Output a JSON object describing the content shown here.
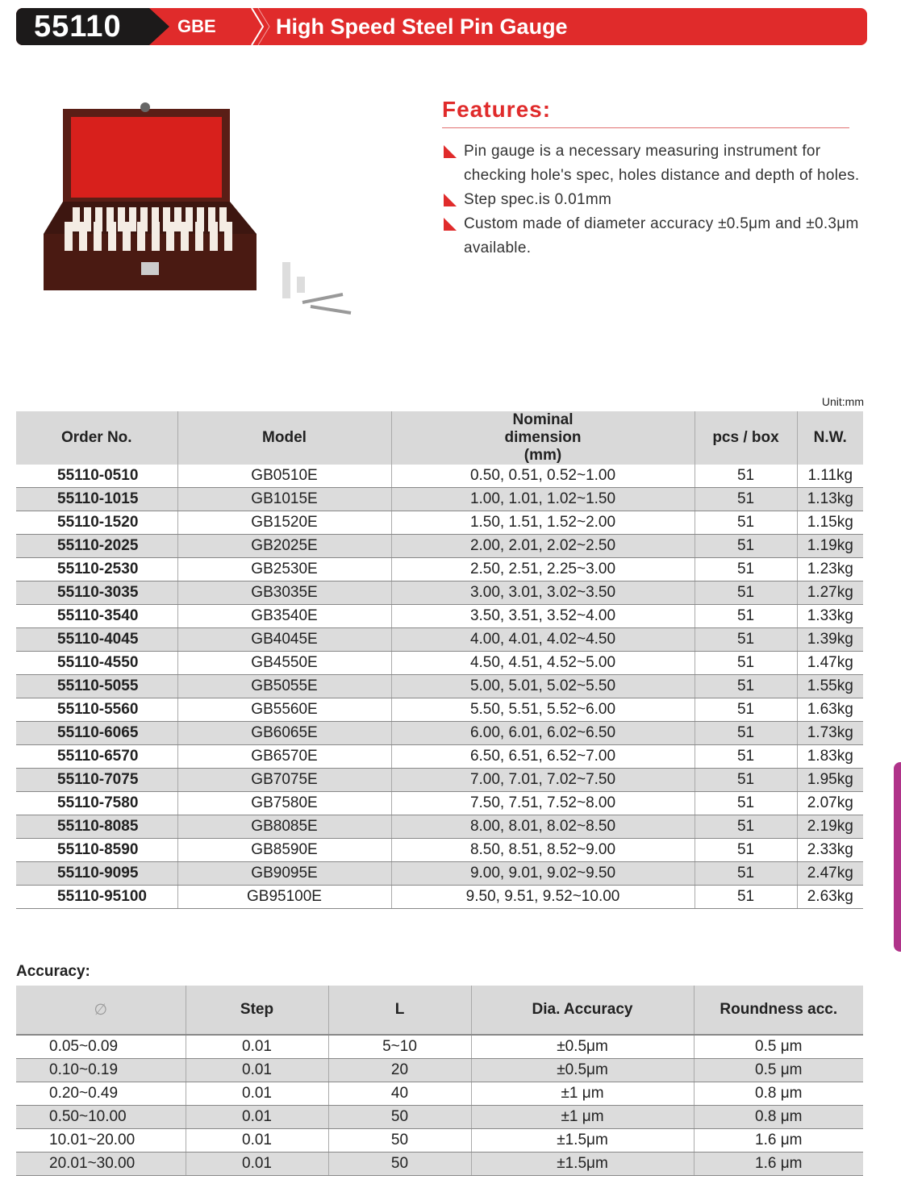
{
  "banner": {
    "number": "55110",
    "brand": "GBE",
    "title": "High Speed Steel Pin Gauge"
  },
  "features": {
    "title": "Features:",
    "items": [
      "Pin gauge is a necessary measuring instrument for checking hole's spec, holes distance and depth of holes.",
      "Step spec.is 0.01mm",
      "Custom made of diameter accuracy ±0.5μm and ±0.3μm available."
    ]
  },
  "main_table": {
    "unit": "Unit:mm",
    "headers": [
      "Order No.",
      "Model",
      "Nominal dimension (mm)",
      "pcs / box",
      "N.W."
    ],
    "rows": [
      [
        "55110-0510",
        "GB0510E",
        "0.50, 0.51, 0.52~1.00",
        "51",
        "1.11kg"
      ],
      [
        "55110-1015",
        "GB1015E",
        "1.00, 1.01, 1.02~1.50",
        "51",
        "1.13kg"
      ],
      [
        "55110-1520",
        "GB1520E",
        "1.50, 1.51, 1.52~2.00",
        "51",
        "1.15kg"
      ],
      [
        "55110-2025",
        "GB2025E",
        "2.00, 2.01, 2.02~2.50",
        "51",
        "1.19kg"
      ],
      [
        "55110-2530",
        "GB2530E",
        "2.50, 2.51, 2.25~3.00",
        "51",
        "1.23kg"
      ],
      [
        "55110-3035",
        "GB3035E",
        "3.00, 3.01, 3.02~3.50",
        "51",
        "1.27kg"
      ],
      [
        "55110-3540",
        "GB3540E",
        "3.50, 3.51, 3.52~4.00",
        "51",
        "1.33kg"
      ],
      [
        "55110-4045",
        "GB4045E",
        "4.00, 4.01, 4.02~4.50",
        "51",
        "1.39kg"
      ],
      [
        "55110-4550",
        "GB4550E",
        "4.50, 4.51, 4.52~5.00",
        "51",
        "1.47kg"
      ],
      [
        "55110-5055",
        "GB5055E",
        "5.00, 5.01, 5.02~5.50",
        "51",
        "1.55kg"
      ],
      [
        "55110-5560",
        "GB5560E",
        "5.50, 5.51, 5.52~6.00",
        "51",
        "1.63kg"
      ],
      [
        "55110-6065",
        "GB6065E",
        "6.00, 6.01, 6.02~6.50",
        "51",
        "1.73kg"
      ],
      [
        "55110-6570",
        "GB6570E",
        "6.50, 6.51, 6.52~7.00",
        "51",
        "1.83kg"
      ],
      [
        "55110-7075",
        "GB7075E",
        "7.00, 7.01, 7.02~7.50",
        "51",
        "1.95kg"
      ],
      [
        "55110-7580",
        "GB7580E",
        "7.50, 7.51, 7.52~8.00",
        "51",
        "2.07kg"
      ],
      [
        "55110-8085",
        "GB8085E",
        "8.00, 8.01, 8.02~8.50",
        "51",
        "2.19kg"
      ],
      [
        "55110-8590",
        "GB8590E",
        "8.50, 8.51, 8.52~9.00",
        "51",
        "2.33kg"
      ],
      [
        "55110-9095",
        "GB9095E",
        "9.00, 9.01, 9.02~9.50",
        "51",
        "2.47kg"
      ],
      [
        "55110-95100",
        "GB95100E",
        "9.50, 9.51, 9.52~10.00",
        "51",
        "2.63kg"
      ]
    ]
  },
  "accuracy": {
    "label": "Accuracy:",
    "headers": [
      "∅",
      "Step",
      "L",
      "Dia. Accuracy",
      "Roundness acc."
    ],
    "rows": [
      [
        "0.05~0.09",
        "0.01",
        "5~10",
        "±0.5μm",
        "0.5 μm"
      ],
      [
        "0.10~0.19",
        "0.01",
        "20",
        "±0.5μm",
        "0.5 μm"
      ],
      [
        "0.20~0.49",
        "0.01",
        "40",
        "±1 μm",
        "0.8 μm"
      ],
      [
        "0.50~10.00",
        "0.01",
        "50",
        "±1 μm",
        "0.8 μm"
      ],
      [
        "10.01~20.00",
        "0.01",
        "50",
        "±1.5μm",
        "1.6 μm"
      ],
      [
        "20.01~30.00",
        "0.01",
        "50",
        "±1.5μm",
        "1.6 μm"
      ]
    ]
  },
  "colors": {
    "brand_red": "#e02b2b",
    "banner_black": "#1c1a1a",
    "row_grey": "#dcdcdc"
  }
}
